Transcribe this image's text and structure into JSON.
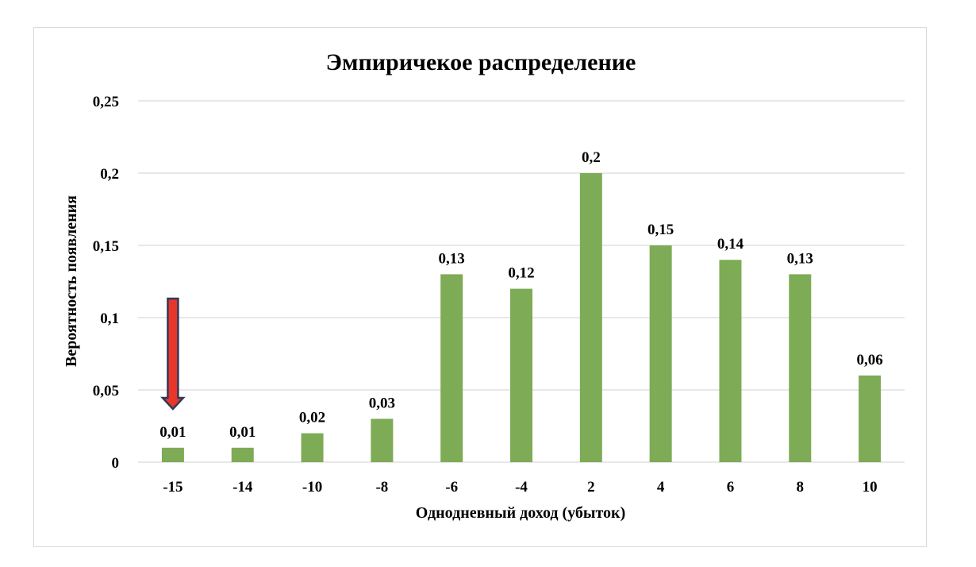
{
  "chart_data": {
    "type": "bar",
    "title": "Эмпиричекое распределение",
    "xlabel": "Однодневный доход (убыток)",
    "ylabel": "Вероятность появления",
    "categories": [
      "-15",
      "-14",
      "-10",
      "-8",
      "-6",
      "-4",
      "2",
      "4",
      "6",
      "8",
      "10"
    ],
    "values": [
      0.01,
      0.01,
      0.02,
      0.03,
      0.13,
      0.12,
      0.2,
      0.15,
      0.14,
      0.13,
      0.06
    ],
    "data_labels": [
      "0,01",
      "0,01",
      "0,02",
      "0,03",
      "0,13",
      "0,12",
      "0,2",
      "0,15",
      "0,14",
      "0,13",
      "0,06"
    ],
    "ylim": [
      0,
      0.25
    ],
    "yticks": [
      0,
      0.05,
      0.1,
      0.15,
      0.2,
      0.25
    ],
    "ytick_labels": [
      "0",
      "0,05",
      "0,1",
      "0,15",
      "0,2",
      "0,25"
    ],
    "grid": true,
    "legend": "none",
    "bar_color": "#7eab55",
    "gridline_color": "#d9d9d9",
    "annotation": {
      "type": "arrow-down",
      "target_category": "-15",
      "fill_color": "#e8362b",
      "stroke_color": "#2f3a5c"
    }
  }
}
